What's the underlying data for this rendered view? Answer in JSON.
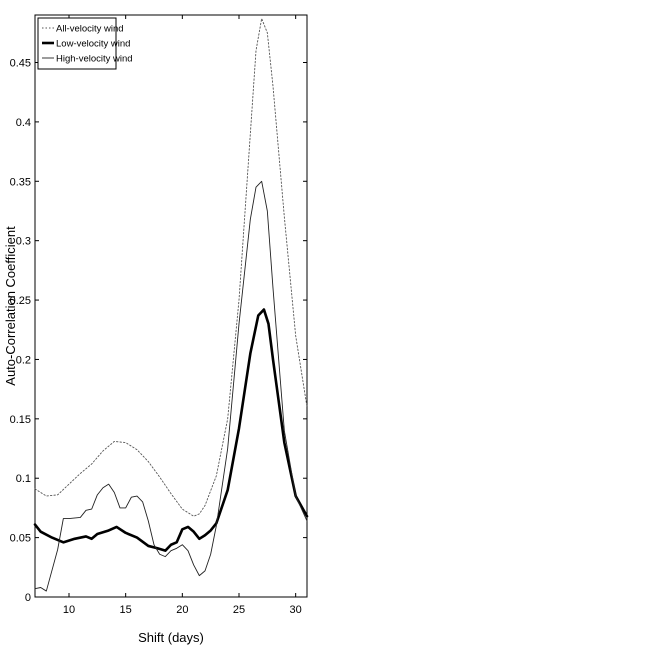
{
  "chart_data": {
    "type": "line",
    "title": "",
    "xlabel": "Shift (days)",
    "ylabel": "Auto-Correlation Coefficient",
    "xlim": [
      7,
      31
    ],
    "ylim": [
      0,
      0.49
    ],
    "xticks": [
      10,
      15,
      20,
      25,
      30
    ],
    "yticks": [
      0,
      0.05,
      0.1,
      0.15,
      0.2,
      0.25,
      0.3,
      0.35,
      0.4,
      0.45
    ],
    "xtick_labels": [
      "10",
      "15",
      "20",
      "25",
      "30"
    ],
    "ytick_labels": [
      "0",
      "0.05",
      "0.1",
      "0.15",
      "0.2",
      "0.25",
      "0.3",
      "0.35",
      "0.4",
      "0.45"
    ],
    "grid": false,
    "legend_position": "top-left",
    "series": [
      {
        "name": "All-velocity wind",
        "style": "dotted",
        "color": "#555555",
        "points": [
          [
            7,
            0.091
          ],
          [
            8,
            0.085
          ],
          [
            9,
            0.086
          ],
          [
            10,
            0.095
          ],
          [
            11,
            0.104
          ],
          [
            12,
            0.112
          ],
          [
            13,
            0.123
          ],
          [
            14,
            0.131
          ],
          [
            15,
            0.13
          ],
          [
            16,
            0.124
          ],
          [
            17,
            0.114
          ],
          [
            18,
            0.101
          ],
          [
            19,
            0.087
          ],
          [
            20,
            0.074
          ],
          [
            21,
            0.068
          ],
          [
            21.5,
            0.07
          ],
          [
            22,
            0.077
          ],
          [
            23,
            0.102
          ],
          [
            24,
            0.15
          ],
          [
            25,
            0.25
          ],
          [
            26,
            0.39
          ],
          [
            26.5,
            0.46
          ],
          [
            27,
            0.487
          ],
          [
            27.5,
            0.475
          ],
          [
            28,
            0.43
          ],
          [
            29,
            0.32
          ],
          [
            30,
            0.22
          ],
          [
            31,
            0.16
          ]
        ]
      },
      {
        "name": "Low-velocity wind",
        "style": "solid-bold",
        "color": "#000000",
        "points": [
          [
            7,
            0.061
          ],
          [
            7.5,
            0.055
          ],
          [
            8.5,
            0.05
          ],
          [
            9.5,
            0.046
          ],
          [
            10.5,
            0.049
          ],
          [
            11.5,
            0.051
          ],
          [
            12,
            0.049
          ],
          [
            12.5,
            0.053
          ],
          [
            13.5,
            0.056
          ],
          [
            14.2,
            0.059
          ],
          [
            15,
            0.054
          ],
          [
            16,
            0.05
          ],
          [
            17,
            0.043
          ],
          [
            17.8,
            0.041
          ],
          [
            18.5,
            0.039
          ],
          [
            19,
            0.044
          ],
          [
            19.5,
            0.046
          ],
          [
            20,
            0.057
          ],
          [
            20.5,
            0.059
          ],
          [
            21,
            0.055
          ],
          [
            21.5,
            0.049
          ],
          [
            22,
            0.052
          ],
          [
            22.5,
            0.056
          ],
          [
            23,
            0.062
          ],
          [
            24,
            0.09
          ],
          [
            25,
            0.142
          ],
          [
            26,
            0.205
          ],
          [
            26.7,
            0.237
          ],
          [
            27.2,
            0.242
          ],
          [
            27.6,
            0.23
          ],
          [
            28,
            0.2
          ],
          [
            29,
            0.13
          ],
          [
            30,
            0.085
          ],
          [
            31,
            0.068
          ]
        ]
      },
      {
        "name": "High-velocity wind",
        "style": "solid",
        "color": "#222222",
        "points": [
          [
            7,
            0.007
          ],
          [
            7.5,
            0.008
          ],
          [
            8,
            0.005
          ],
          [
            9,
            0.04
          ],
          [
            9.5,
            0.066
          ],
          [
            10,
            0.066
          ],
          [
            11,
            0.067
          ],
          [
            11.5,
            0.073
          ],
          [
            12,
            0.074
          ],
          [
            12.5,
            0.086
          ],
          [
            13,
            0.092
          ],
          [
            13.5,
            0.095
          ],
          [
            14,
            0.088
          ],
          [
            14.5,
            0.075
          ],
          [
            15,
            0.075
          ],
          [
            15.5,
            0.084
          ],
          [
            16,
            0.085
          ],
          [
            16.5,
            0.08
          ],
          [
            17,
            0.064
          ],
          [
            17.5,
            0.044
          ],
          [
            18,
            0.036
          ],
          [
            18.5,
            0.034
          ],
          [
            19,
            0.039
          ],
          [
            19.5,
            0.041
          ],
          [
            20,
            0.044
          ],
          [
            20.5,
            0.039
          ],
          [
            21,
            0.027
          ],
          [
            21.5,
            0.018
          ],
          [
            22,
            0.022
          ],
          [
            22.5,
            0.036
          ],
          [
            23,
            0.06
          ],
          [
            24,
            0.125
          ],
          [
            25,
            0.23
          ],
          [
            26,
            0.318
          ],
          [
            26.5,
            0.345
          ],
          [
            27,
            0.35
          ],
          [
            27.5,
            0.325
          ],
          [
            28,
            0.26
          ],
          [
            28.5,
            0.2
          ],
          [
            29,
            0.14
          ],
          [
            30,
            0.085
          ],
          [
            31,
            0.064
          ]
        ]
      }
    ]
  }
}
